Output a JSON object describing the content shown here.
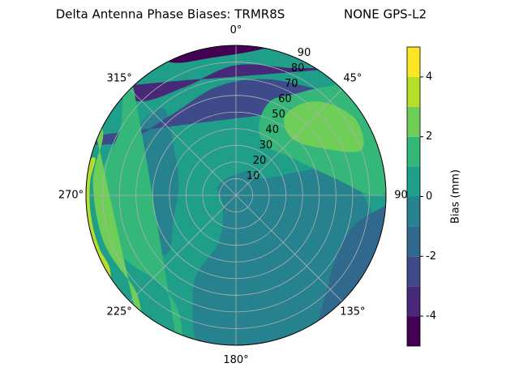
{
  "chart_data": {
    "type": "polar-contour",
    "title": "Delta Antenna Phase Biases: TRMR8S",
    "subtitle": "NONE GPS-L2",
    "theta_direction": "clockwise",
    "theta_zero": "N",
    "thetaticks": [
      {
        "value": 0,
        "label": "0°"
      },
      {
        "value": 45,
        "label": "45°"
      },
      {
        "value": 90,
        "label": "90"
      },
      {
        "value": 135,
        "label": "135°"
      },
      {
        "value": 180,
        "label": "180°"
      },
      {
        "value": 225,
        "label": "225°"
      },
      {
        "value": 270,
        "label": "270°"
      },
      {
        "value": 315,
        "label": "315°"
      }
    ],
    "rlim": [
      0,
      90
    ],
    "rticks": [
      10,
      20,
      30,
      40,
      50,
      60,
      70,
      80,
      90
    ],
    "grid": true,
    "colorbar": {
      "label": "Bias (mm)",
      "levels": [
        -5,
        -4,
        -3,
        -2,
        -1,
        0,
        1,
        2,
        3,
        4,
        5
      ],
      "colors": [
        "#440154",
        "#482878",
        "#3e4a89",
        "#31688e",
        "#26828e",
        "#1f9e89",
        "#35b779",
        "#6ece58",
        "#b5de2b",
        "#fde725"
      ],
      "lim": [
        -5,
        5
      ],
      "ticks": [
        -4,
        -2,
        0,
        2,
        4
      ]
    }
  }
}
